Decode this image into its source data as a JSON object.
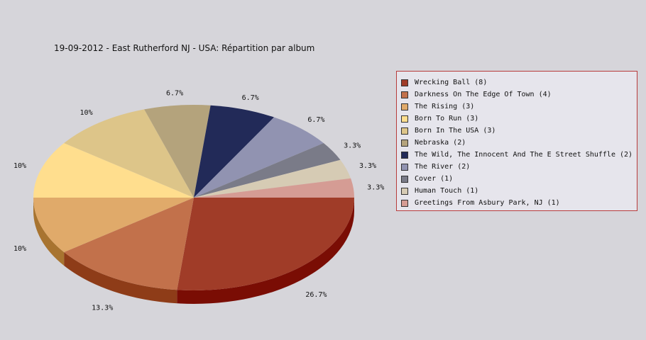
{
  "chart_data": {
    "type": "pie",
    "title": "19-09-2012 - East Rutherford NJ - USA:  Répartition par album",
    "slices": [
      {
        "label": "Wrecking Ball (8)",
        "value": 8,
        "pct_label": "26.7%",
        "color": "#a03c28",
        "side": "#7a0d04"
      },
      {
        "label": "Darkness On The Edge Of Town (4)",
        "value": 4,
        "pct_label": "13.3%",
        "color": "#c2714b",
        "side": "#8e3c18"
      },
      {
        "label": "The Rising (3)",
        "value": 3,
        "pct_label": "10%",
        "color": "#e0aa6a",
        "side": "#a87430"
      },
      {
        "label": "Born To Run (3)",
        "value": 3,
        "pct_label": "10%",
        "color": "#ffde8e",
        "side": "#c8a650"
      },
      {
        "label": "Born In The USA (3)",
        "value": 3,
        "pct_label": "10%",
        "color": "#ddc589",
        "side": "#a8904e"
      },
      {
        "label": "Nebraska (2)",
        "value": 2,
        "pct_label": "6.7%",
        "color": "#b4a37c",
        "side": "#7e6e48"
      },
      {
        "label": "The Wild, The Innocent And The E Street Shuffle (2)",
        "value": 2,
        "pct_label": "6.7%",
        "color": "#222a58",
        "side": "#10152e"
      },
      {
        "label": "The River (2)",
        "value": 2,
        "pct_label": "6.7%",
        "color": "#9193b1",
        "side": "#5e607e"
      },
      {
        "label": "Cover (1)",
        "value": 1,
        "pct_label": "3.3%",
        "color": "#7a7b88",
        "side": "#4c4d58"
      },
      {
        "label": "Human Touch (1)",
        "value": 1,
        "pct_label": "3.3%",
        "color": "#d6cbb4",
        "side": "#a09580"
      },
      {
        "label": "Greetings From Asbury Park, NJ (1)",
        "value": 1,
        "pct_label": "3.3%",
        "color": "#d59c94",
        "side": "#a06860"
      }
    ],
    "legend_position": "right"
  }
}
